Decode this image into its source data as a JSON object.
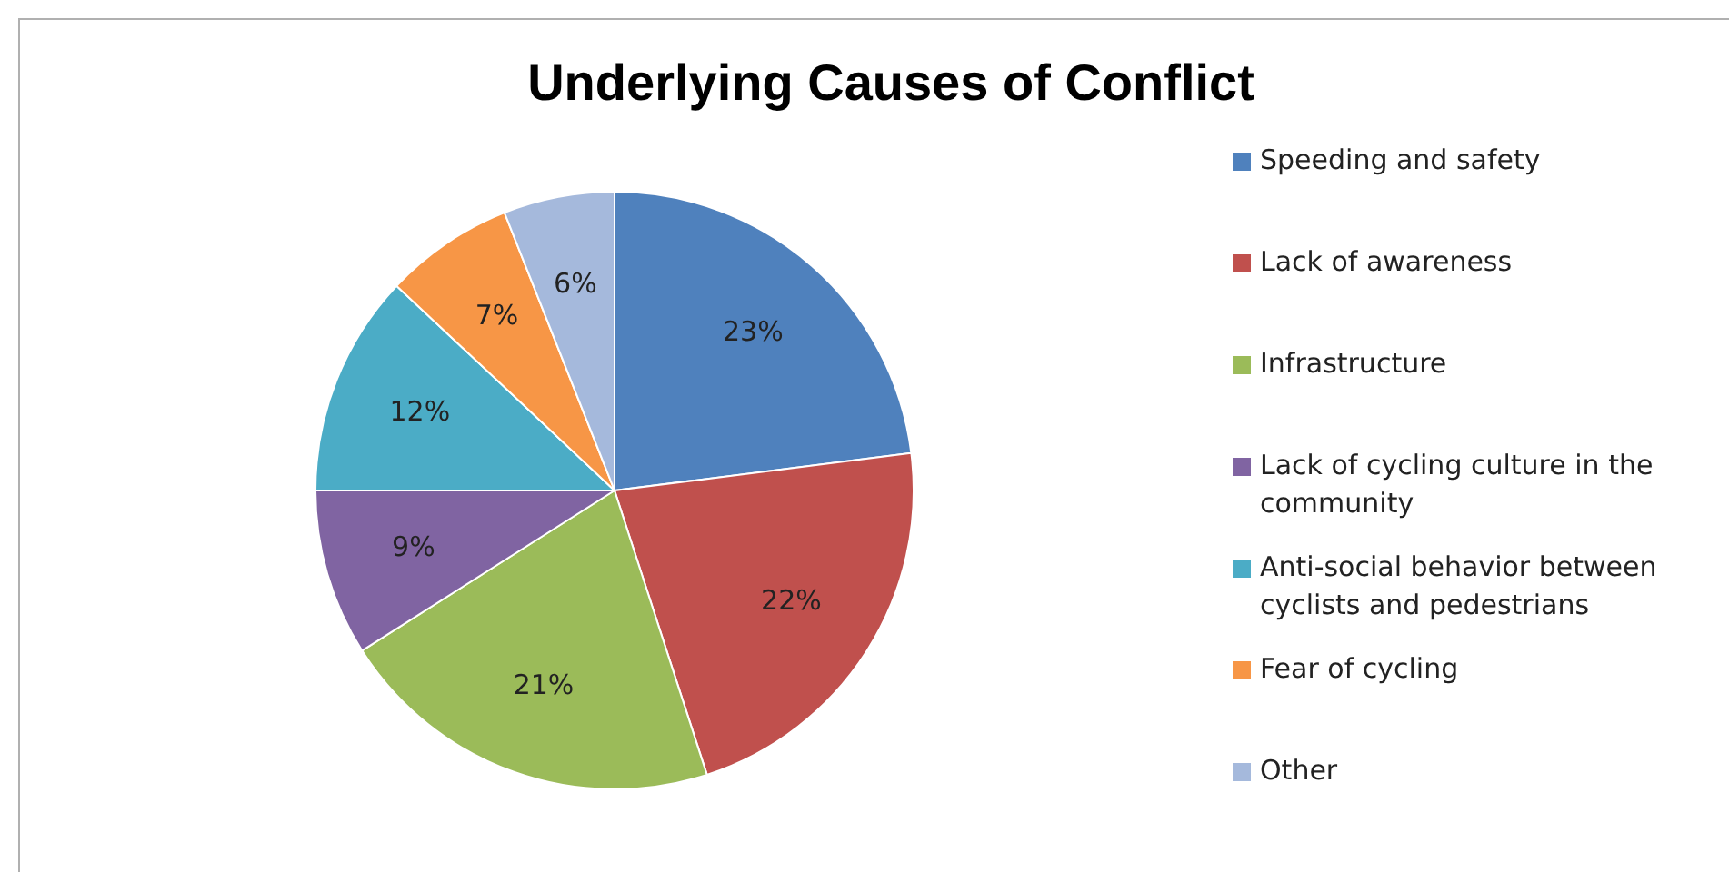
{
  "chart_data": {
    "type": "pie",
    "title": "Underlying Causes of Conflict",
    "categories": [
      "Speeding and safety",
      "Lack of awareness",
      "Infrastructure",
      "Lack of cycling culture in the community",
      "Anti-social behavior between cyclists and pedestrians",
      "Fear of cycling",
      "Other"
    ],
    "values": [
      23,
      22,
      21,
      9,
      12,
      7,
      6
    ],
    "colors": [
      "#4f81bd",
      "#c0504d",
      "#9bbb59",
      "#8064a2",
      "#4bacc6",
      "#f79646",
      "#a5b9dc"
    ],
    "value_labels": [
      "23%",
      "22%",
      "21%",
      "9%",
      "12%",
      "7%",
      "6%"
    ],
    "legend": "right"
  }
}
